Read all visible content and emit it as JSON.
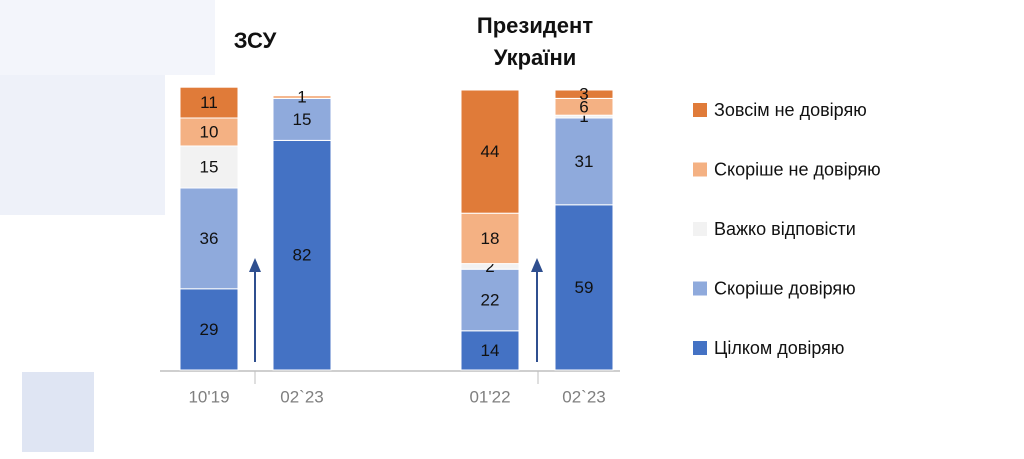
{
  "chart_data": {
    "type": "stacked-bar",
    "group_titles": [
      "ЗСУ",
      "Президент України"
    ],
    "categories": [
      "10'19",
      "02`23",
      "01'22",
      "02`23"
    ],
    "ylim": [
      0,
      100
    ],
    "series": [
      {
        "name": "Зовсім не довіряю",
        "color": "#e07b39",
        "values": [
          11,
          null,
          44,
          3
        ]
      },
      {
        "name": "Скоріше не довіряю",
        "color": "#f4b183",
        "values": [
          10,
          1,
          18,
          6
        ]
      },
      {
        "name": "Важко відповісти",
        "color": "#f2f2f2",
        "values": [
          15,
          null,
          2,
          1
        ]
      },
      {
        "name": "Скоріше довіряю",
        "color": "#8faadc",
        "values": [
          36,
          15,
          22,
          31
        ]
      },
      {
        "name": "Цілком довіряю",
        "color": "#4472c4",
        "values": [
          29,
          82,
          14,
          59
        ]
      }
    ]
  }
}
